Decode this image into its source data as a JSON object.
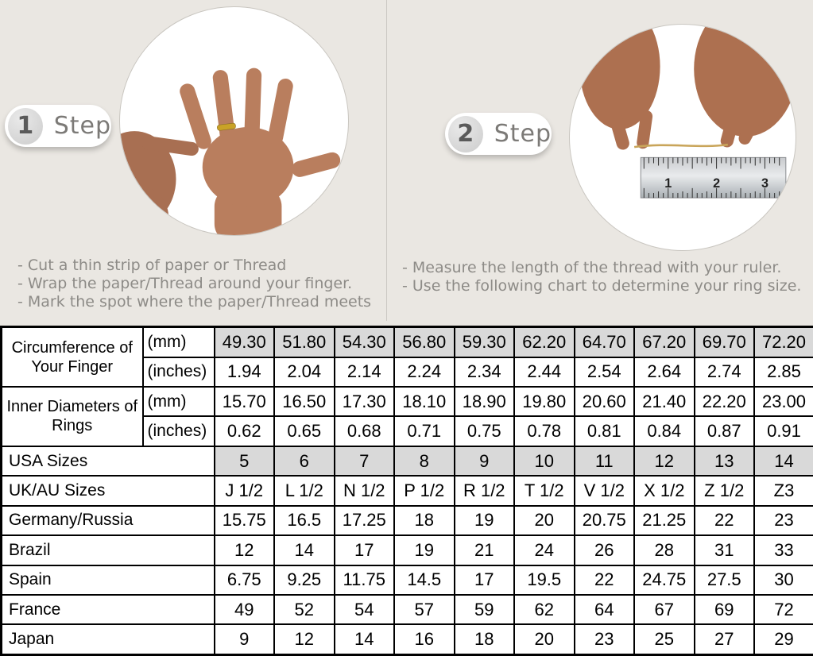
{
  "steps": [
    {
      "number": "1",
      "label": "Step",
      "instructions": [
        "- Cut a thin strip of paper or Thread",
        "- Wrap the paper/Thread around your finger.",
        "- Mark the spot where the paper/Thread meets"
      ]
    },
    {
      "number": "2",
      "label": "Step",
      "instructions": [
        "- Measure the length of the thread with your ruler.",
        "- Use the following chart to determine your ring size."
      ]
    }
  ],
  "illustrations": {
    "step1": "hand-with-ring-photo",
    "step2": "hands-measuring-thread-over-ruler-photo",
    "ruler_numbers": [
      "1",
      "2",
      "3"
    ]
  },
  "colors": {
    "page_background": "#eae7e2",
    "shaded_cell": "#d9d9d9",
    "table_border": "#000000",
    "instruction_text": "#8d8b87",
    "ring_gold": "#c9a227"
  },
  "chart_data": {
    "type": "table",
    "title": "Ring size conversion chart",
    "columns_count": 10,
    "rows": [
      {
        "group": "Circumference of Your Finger",
        "group_rowspan": 2,
        "unit": "(mm)",
        "shaded": true,
        "values": [
          "49.30",
          "51.80",
          "54.30",
          "56.80",
          "59.30",
          "62.20",
          "64.70",
          "67.20",
          "69.70",
          "72.20"
        ]
      },
      {
        "unit": "(inches)",
        "shaded": false,
        "values": [
          "1.94",
          "2.04",
          "2.14",
          "2.24",
          "2.34",
          "2.44",
          "2.54",
          "2.64",
          "2.74",
          "2.85"
        ]
      },
      {
        "group": "Inner Diameters of Rings",
        "group_rowspan": 2,
        "unit": "(mm)",
        "shaded": false,
        "values": [
          "15.70",
          "16.50",
          "17.30",
          "18.10",
          "18.90",
          "19.80",
          "20.60",
          "21.40",
          "22.20",
          "23.00"
        ]
      },
      {
        "unit": "(inches)",
        "shaded": false,
        "values": [
          "0.62",
          "0.65",
          "0.68",
          "0.71",
          "0.75",
          "0.78",
          "0.81",
          "0.84",
          "0.87",
          "0.91"
        ]
      },
      {
        "label": "USA Sizes",
        "shaded": true,
        "values": [
          "5",
          "6",
          "7",
          "8",
          "9",
          "10",
          "11",
          "12",
          "13",
          "14"
        ]
      },
      {
        "label": "UK/AU Sizes",
        "shaded": false,
        "values": [
          "J 1/2",
          "L 1/2",
          "N 1/2",
          "P 1/2",
          "R 1/2",
          "T 1/2",
          "V 1/2",
          "X 1/2",
          "Z 1/2",
          "Z3"
        ]
      },
      {
        "label": "Germany/Russia",
        "shaded": false,
        "values": [
          "15.75",
          "16.5",
          "17.25",
          "18",
          "19",
          "20",
          "20.75",
          "21.25",
          "22",
          "23"
        ]
      },
      {
        "label": "Brazil",
        "shaded": false,
        "values": [
          "12",
          "14",
          "17",
          "19",
          "21",
          "24",
          "26",
          "28",
          "31",
          "33"
        ]
      },
      {
        "label": "Spain",
        "shaded": false,
        "values": [
          "6.75",
          "9.25",
          "11.75",
          "14.5",
          "17",
          "19.5",
          "22",
          "24.75",
          "27.5",
          "30"
        ]
      },
      {
        "label": "France",
        "shaded": false,
        "values": [
          "49",
          "52",
          "54",
          "57",
          "59",
          "62",
          "64",
          "67",
          "69",
          "72"
        ]
      },
      {
        "label": "Japan",
        "shaded": false,
        "values": [
          "9",
          "12",
          "14",
          "16",
          "18",
          "20",
          "23",
          "25",
          "27",
          "29"
        ]
      }
    ]
  }
}
